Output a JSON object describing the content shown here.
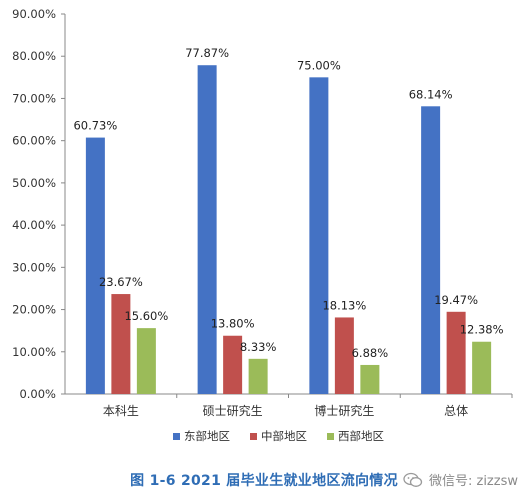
{
  "chart_data": {
    "type": "bar",
    "categories": [
      "本科生",
      "硕士研究生",
      "博士研究生",
      "总体"
    ],
    "series": [
      {
        "name": "东部地区",
        "color": "#4472c4",
        "values": [
          60.73,
          77.87,
          75.0,
          68.14
        ]
      },
      {
        "name": "中部地区",
        "color": "#c0504d",
        "values": [
          23.67,
          13.8,
          18.13,
          19.47
        ]
      },
      {
        "name": "西部地区",
        "color": "#9bbb59",
        "values": [
          15.6,
          8.33,
          6.88,
          12.38
        ]
      }
    ],
    "data_labels": [
      [
        "60.73%",
        "77.87%",
        "75.00%",
        "68.14%"
      ],
      [
        "23.67%",
        "13.80%",
        "18.13%",
        "19.47%"
      ],
      [
        "15.60%",
        "8.33%",
        "6.88%",
        "12.38%"
      ]
    ],
    "ylim": [
      0,
      90
    ],
    "y_ticks": [
      "0.00%",
      "10.00%",
      "20.00%",
      "30.00%",
      "40.00%",
      "50.00%",
      "60.00%",
      "70.00%",
      "80.00%",
      "90.00%"
    ],
    "grid": false,
    "legend_position": "bottom",
    "title": ""
  },
  "caption": "图 1-6   2021 届毕业生就业地区流向情况",
  "watermark": {
    "text": "微信号: zizzsw",
    "icon": "wechat-icon"
  }
}
